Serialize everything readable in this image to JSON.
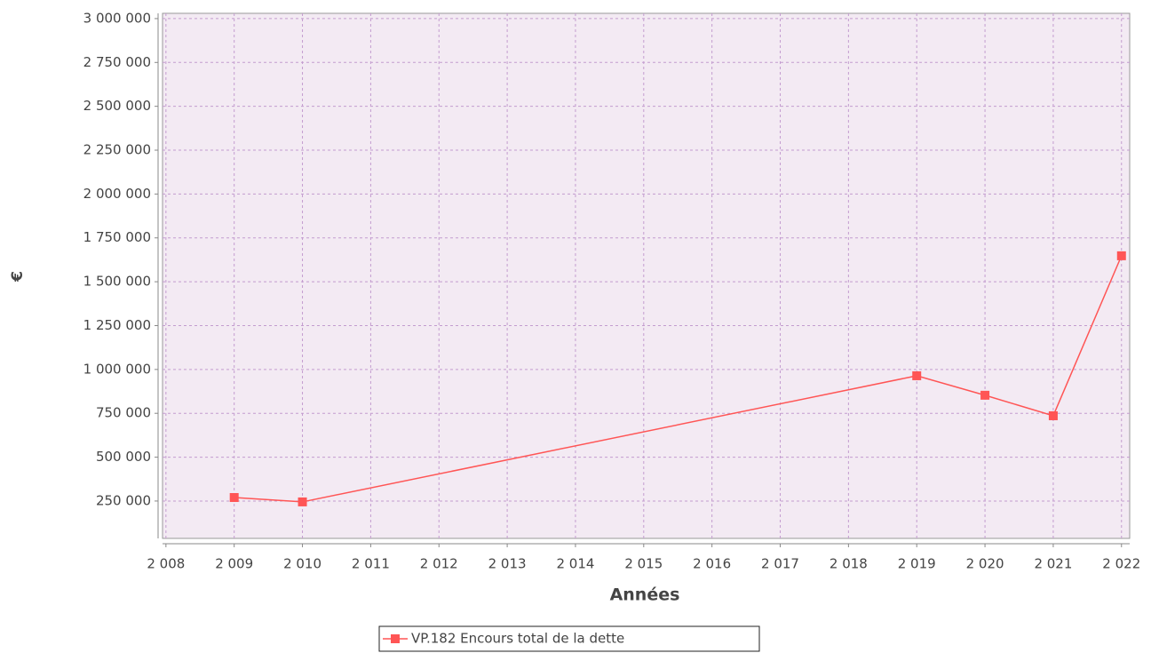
{
  "chart_data": {
    "type": "line",
    "x_label": "Années",
    "y_label": "€",
    "x": [
      2009,
      2010,
      2019,
      2020,
      2021,
      2022
    ],
    "series": [
      {
        "name": "VP.182 Encours total de la dette",
        "color": "#ff5555",
        "values": [
          270000,
          245000,
          964000,
          853000,
          736000,
          1648000
        ]
      }
    ],
    "xlim": [
      2007.95,
      2022.12
    ],
    "xticks": [
      {
        "value": 2008,
        "label": "2 008"
      },
      {
        "value": 2009,
        "label": "2 009"
      },
      {
        "value": 2010,
        "label": "2 010"
      },
      {
        "value": 2011,
        "label": "2 011"
      },
      {
        "value": 2012,
        "label": "2 012"
      },
      {
        "value": 2013,
        "label": "2 013"
      },
      {
        "value": 2014,
        "label": "2 014"
      },
      {
        "value": 2015,
        "label": "2 015"
      },
      {
        "value": 2016,
        "label": "2 016"
      },
      {
        "value": 2017,
        "label": "2 017"
      },
      {
        "value": 2018,
        "label": "2 018"
      },
      {
        "value": 2019,
        "label": "2 019"
      },
      {
        "value": 2020,
        "label": "2 020"
      },
      {
        "value": 2021,
        "label": "2 021"
      },
      {
        "value": 2022,
        "label": "2 022"
      }
    ],
    "ylim": [
      37000,
      3030000
    ],
    "yticks": [
      {
        "value": 250000,
        "label": "250 000"
      },
      {
        "value": 500000,
        "label": "500 000"
      },
      {
        "value": 750000,
        "label": "750 000"
      },
      {
        "value": 1000000,
        "label": "1 000 000"
      },
      {
        "value": 1250000,
        "label": "1 250 000"
      },
      {
        "value": 1500000,
        "label": "1 500 000"
      },
      {
        "value": 1750000,
        "label": "1 750 000"
      },
      {
        "value": 2000000,
        "label": "2 000 000"
      },
      {
        "value": 2250000,
        "label": "2 250 000"
      },
      {
        "value": 2500000,
        "label": "2 500 000"
      },
      {
        "value": 2750000,
        "label": "2 750 000"
      },
      {
        "value": 3000000,
        "label": "3 000 000"
      }
    ],
    "grid": true,
    "legend": "bottom"
  }
}
